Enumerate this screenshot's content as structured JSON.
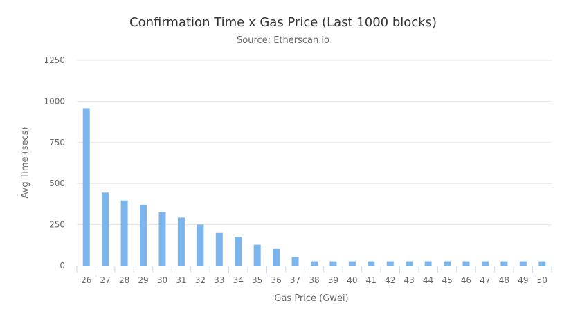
{
  "chart_data": {
    "type": "bar",
    "title": "Confirmation Time x Gas Price (Last 1000 blocks)",
    "subtitle": "Source: Etherscan.io",
    "xlabel": "Gas Price (Gwei)",
    "ylabel": "Avg Time (secs)",
    "categories": [
      "26",
      "27",
      "28",
      "29",
      "30",
      "31",
      "32",
      "33",
      "34",
      "35",
      "36",
      "37",
      "38",
      "39",
      "40",
      "41",
      "42",
      "43",
      "44",
      "45",
      "46",
      "47",
      "48",
      "49",
      "50"
    ],
    "values": [
      958,
      445,
      397,
      371,
      326,
      293,
      251,
      203,
      176,
      128,
      102,
      53,
      27,
      27,
      27,
      27,
      27,
      27,
      27,
      27,
      27,
      27,
      27,
      27,
      27
    ],
    "ylim": [
      0,
      1250
    ],
    "yticks": [
      0,
      250,
      500,
      750,
      1000,
      1250
    ],
    "grid": true,
    "legend": "none",
    "bar_color": "#7cb5ec",
    "grid_color": "#e6e6e6",
    "axis_color": "#ccd6eb"
  }
}
